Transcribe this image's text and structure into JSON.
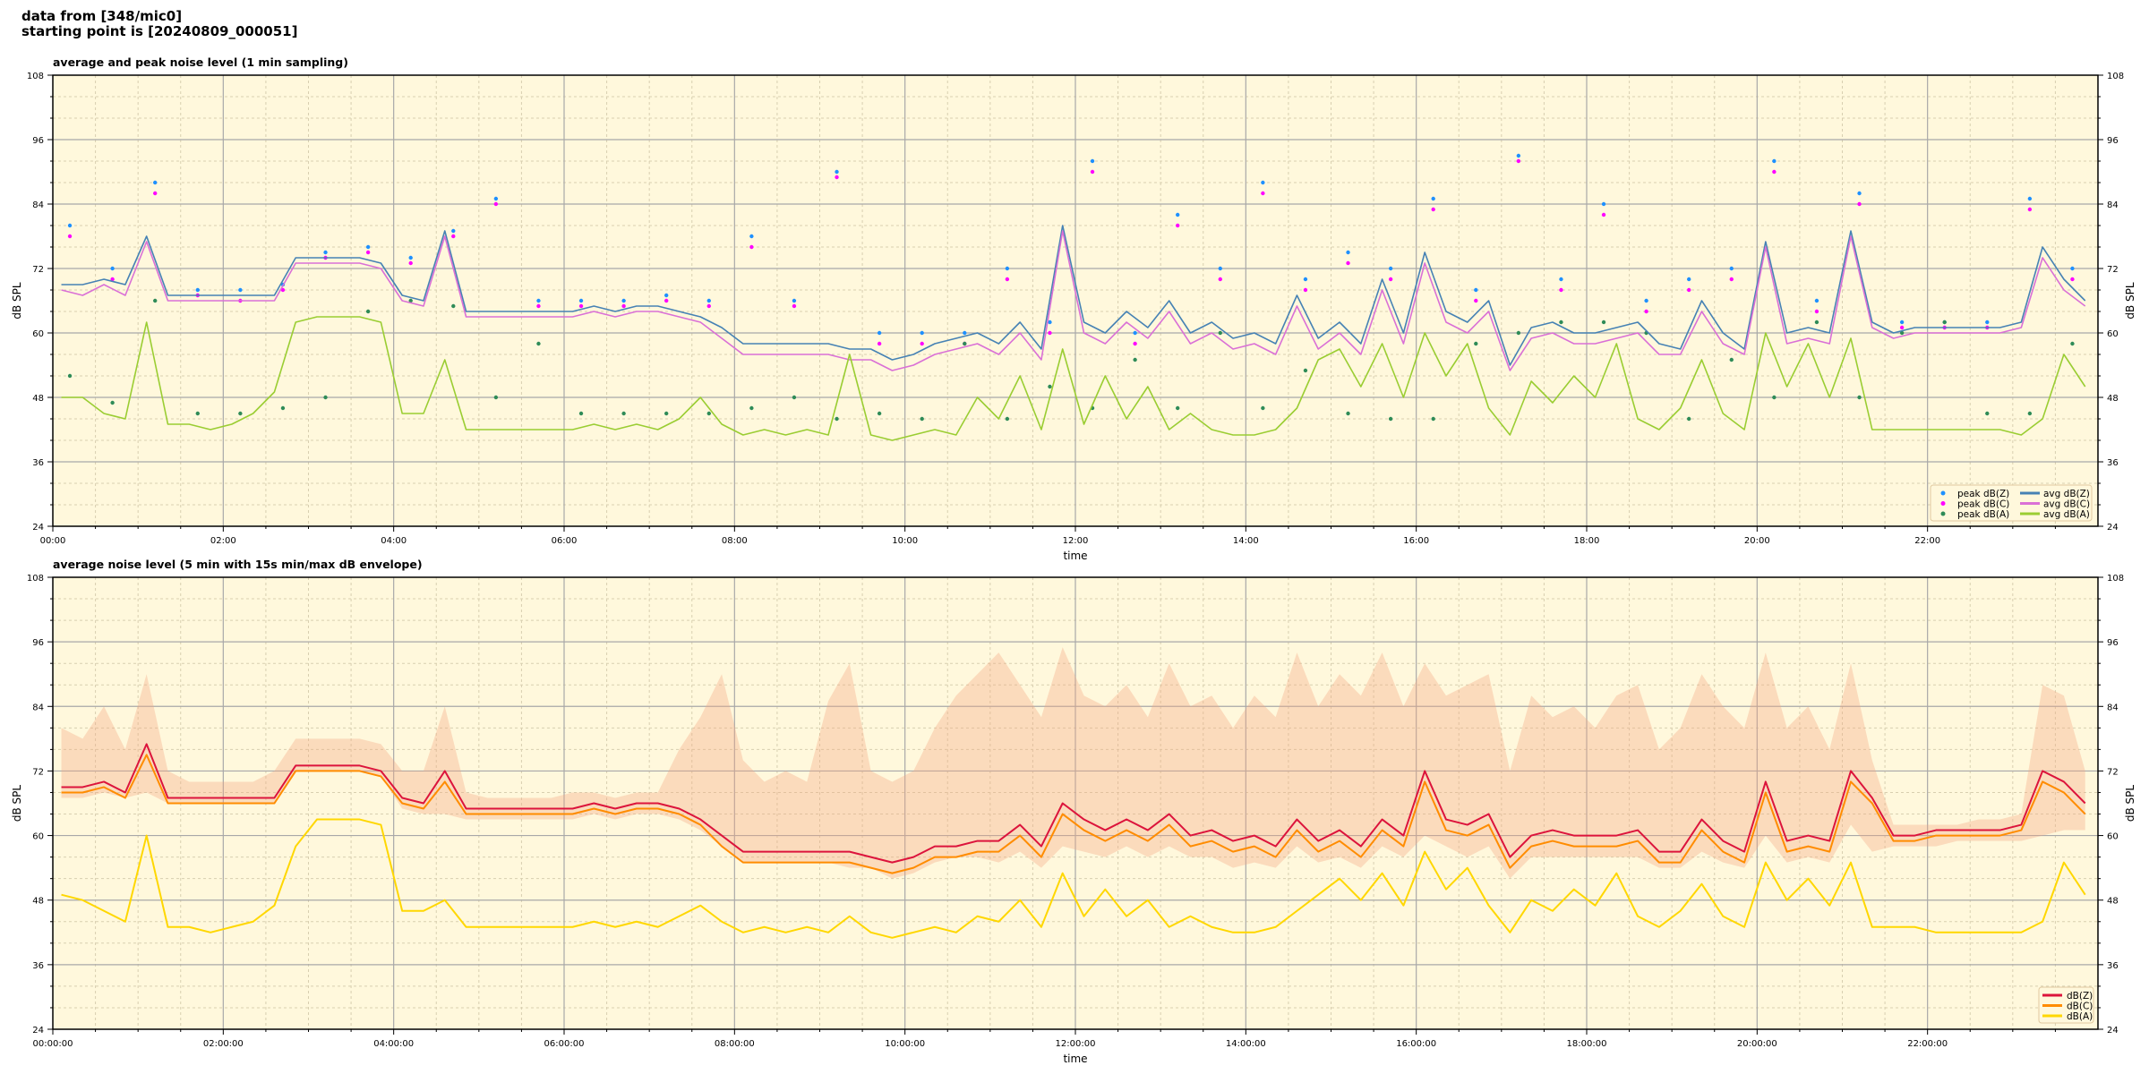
{
  "header": {
    "line1": "data from [348/mic0]",
    "line2": "starting point is [20240809_000051]"
  },
  "chart_data": [
    {
      "type": "line",
      "title": "average and peak noise level (1 min sampling)",
      "xlabel": "time",
      "ylabel": "dB SPL",
      "xlim_hours": [
        0,
        24
      ],
      "ylim": [
        24,
        108
      ],
      "yticks": [
        24,
        36,
        48,
        60,
        72,
        84,
        96,
        108
      ],
      "xtick_labels": [
        "00:00",
        "02:00",
        "04:00",
        "06:00",
        "08:00",
        "10:00",
        "12:00",
        "14:00",
        "16:00",
        "18:00",
        "20:00",
        "22:00"
      ],
      "grid": true,
      "legend_position": "bottom-right",
      "background": "#fff8dc",
      "x_step_hours_lines": 0.25,
      "x_step_hours_points": 0.5,
      "series": [
        {
          "name": "peak dB(Z)",
          "kind": "scatter",
          "color": "#1e90ff",
          "values": [
            80,
            72,
            88,
            68,
            68,
            69,
            75,
            76,
            74,
            79,
            85,
            66,
            66,
            66,
            67,
            66,
            78,
            66,
            90,
            60,
            60,
            60,
            72,
            62,
            92,
            60,
            82,
            72,
            88,
            70,
            75,
            72,
            85,
            68,
            93,
            70,
            84,
            66,
            70,
            72,
            92,
            66,
            86,
            62,
            62,
            62,
            85,
            72
          ]
        },
        {
          "name": "peak dB(C)",
          "kind": "scatter",
          "color": "#ff00ff",
          "values": [
            78,
            70,
            86,
            67,
            66,
            68,
            74,
            75,
            73,
            78,
            84,
            65,
            65,
            65,
            66,
            65,
            76,
            65,
            89,
            58,
            58,
            58,
            70,
            60,
            90,
            58,
            80,
            70,
            86,
            68,
            73,
            70,
            83,
            66,
            92,
            68,
            82,
            64,
            68,
            70,
            90,
            64,
            84,
            61,
            61,
            61,
            83,
            70
          ]
        },
        {
          "name": "peak dB(A)",
          "kind": "scatter",
          "color": "#2e8b57",
          "values": [
            52,
            47,
            66,
            45,
            45,
            46,
            48,
            64,
            66,
            65,
            48,
            58,
            45,
            45,
            45,
            45,
            46,
            48,
            44,
            45,
            44,
            58,
            44,
            50,
            46,
            55,
            46,
            60,
            46,
            53,
            45,
            44,
            44,
            58,
            60,
            62,
            62,
            60,
            44,
            55,
            48,
            62,
            48,
            60,
            62,
            45,
            45,
            58
          ]
        },
        {
          "name": "avg dB(Z)",
          "kind": "line",
          "color": "#4682b4",
          "values": [
            69,
            69,
            70,
            69,
            78,
            67,
            67,
            67,
            67,
            67,
            67,
            74,
            74,
            74,
            74,
            73,
            67,
            66,
            79,
            64,
            64,
            64,
            64,
            64,
            64,
            65,
            64,
            65,
            65,
            64,
            63,
            61,
            58,
            58,
            58,
            58,
            58,
            57,
            57,
            55,
            56,
            58,
            59,
            60,
            58,
            62,
            57,
            80,
            62,
            60,
            64,
            61,
            66,
            60,
            62,
            59,
            60,
            58,
            67,
            59,
            62,
            58,
            70,
            60,
            75,
            64,
            62,
            66,
            54,
            61,
            62,
            60,
            60,
            61,
            62,
            58,
            57,
            66,
            60,
            57,
            77,
            60,
            61,
            60,
            79,
            62,
            60,
            61,
            61,
            61,
            61,
            61,
            62,
            76,
            70,
            66
          ]
        },
        {
          "name": "avg dB(C)",
          "kind": "line",
          "color": "#da70d6",
          "values": [
            68,
            67,
            69,
            67,
            77,
            66,
            66,
            66,
            66,
            66,
            66,
            73,
            73,
            73,
            73,
            72,
            66,
            65,
            78,
            63,
            63,
            63,
            63,
            63,
            63,
            64,
            63,
            64,
            64,
            63,
            62,
            59,
            56,
            56,
            56,
            56,
            56,
            55,
            55,
            53,
            54,
            56,
            57,
            58,
            56,
            60,
            55,
            79,
            60,
            58,
            62,
            59,
            64,
            58,
            60,
            57,
            58,
            56,
            65,
            57,
            60,
            56,
            68,
            58,
            73,
            62,
            60,
            64,
            53,
            59,
            60,
            58,
            58,
            59,
            60,
            56,
            56,
            64,
            58,
            56,
            76,
            58,
            59,
            58,
            78,
            61,
            59,
            60,
            60,
            60,
            60,
            60,
            61,
            74,
            68,
            65
          ]
        },
        {
          "name": "avg dB(A)",
          "kind": "line",
          "color": "#9acd32",
          "values": [
            48,
            48,
            45,
            44,
            62,
            43,
            43,
            42,
            43,
            45,
            49,
            62,
            63,
            63,
            63,
            62,
            45,
            45,
            55,
            42,
            42,
            42,
            42,
            42,
            42,
            43,
            42,
            43,
            42,
            44,
            48,
            43,
            41,
            42,
            41,
            42,
            41,
            56,
            41,
            40,
            41,
            42,
            41,
            48,
            44,
            52,
            42,
            57,
            43,
            52,
            44,
            50,
            42,
            45,
            42,
            41,
            41,
            42,
            46,
            55,
            57,
            50,
            58,
            48,
            60,
            52,
            58,
            46,
            41,
            51,
            47,
            52,
            48,
            58,
            44,
            42,
            46,
            55,
            45,
            42,
            60,
            50,
            58,
            48,
            59,
            42,
            42,
            42,
            42,
            42,
            42,
            42,
            41,
            44,
            56,
            50
          ]
        }
      ]
    },
    {
      "type": "line",
      "title": "average noise level (5 min with 15s min/max dB envelope)",
      "xlabel": "time",
      "ylabel": "dB SPL",
      "xlim_hours": [
        0,
        24
      ],
      "ylim": [
        24,
        108
      ],
      "yticks": [
        24,
        36,
        48,
        60,
        72,
        84,
        96,
        108
      ],
      "xtick_labels": [
        "00:00:00",
        "02:00:00",
        "04:00:00",
        "06:00:00",
        "08:00:00",
        "10:00:00",
        "12:00:00",
        "14:00:00",
        "16:00:00",
        "18:00:00",
        "20:00:00",
        "22:00:00"
      ],
      "grid": true,
      "legend_position": "bottom-right",
      "background": "#fff8dc",
      "x_step_hours": 0.25,
      "envelope": {
        "color": "#f4a582",
        "max_values": [
          80,
          78,
          84,
          76,
          90,
          72,
          70,
          70,
          70,
          70,
          72,
          78,
          78,
          78,
          78,
          77,
          72,
          72,
          84,
          68,
          67,
          67,
          67,
          67,
          68,
          68,
          67,
          68,
          68,
          76,
          82,
          90,
          74,
          70,
          72,
          70,
          85,
          92,
          72,
          70,
          72,
          80,
          86,
          90,
          94,
          88,
          82,
          95,
          86,
          84,
          88,
          82,
          92,
          84,
          86,
          80,
          86,
          82,
          94,
          84,
          90,
          86,
          94,
          84,
          92,
          86,
          88,
          90,
          72,
          86,
          82,
          84,
          80,
          86,
          88,
          76,
          80,
          90,
          84,
          80,
          94,
          80,
          84,
          76,
          92,
          74,
          62,
          62,
          62,
          62,
          63,
          63,
          64,
          88,
          86,
          72
        ],
        "min_values": [
          67,
          67,
          68,
          67,
          68,
          66,
          66,
          66,
          66,
          66,
          66,
          72,
          72,
          72,
          72,
          71,
          65,
          64,
          64,
          63,
          63,
          63,
          63,
          63,
          63,
          64,
          63,
          64,
          64,
          63,
          61,
          58,
          55,
          55,
          55,
          55,
          55,
          54,
          54,
          52,
          53,
          55,
          56,
          56,
          55,
          57,
          54,
          58,
          57,
          56,
          58,
          56,
          58,
          56,
          56,
          54,
          55,
          54,
          58,
          55,
          56,
          54,
          58,
          56,
          60,
          58,
          56,
          58,
          52,
          56,
          56,
          56,
          56,
          56,
          56,
          54,
          54,
          57,
          55,
          54,
          60,
          55,
          56,
          55,
          62,
          57,
          58,
          58,
          58,
          59,
          59,
          59,
          59,
          60,
          61,
          61
        ]
      },
      "series": [
        {
          "name": "dB(Z)",
          "color": "#dc143c",
          "values": [
            69,
            69,
            70,
            68,
            77,
            67,
            67,
            67,
            67,
            67,
            67,
            73,
            73,
            73,
            73,
            72,
            67,
            66,
            72,
            65,
            65,
            65,
            65,
            65,
            65,
            66,
            65,
            66,
            66,
            65,
            63,
            60,
            57,
            57,
            57,
            57,
            57,
            57,
            56,
            55,
            56,
            58,
            58,
            59,
            59,
            62,
            58,
            66,
            63,
            61,
            63,
            61,
            64,
            60,
            61,
            59,
            60,
            58,
            63,
            59,
            61,
            58,
            63,
            60,
            72,
            63,
            62,
            64,
            56,
            60,
            61,
            60,
            60,
            60,
            61,
            57,
            57,
            63,
            59,
            57,
            70,
            59,
            60,
            59,
            72,
            67,
            60,
            60,
            61,
            61,
            61,
            61,
            62,
            72,
            70,
            66
          ]
        },
        {
          "name": "dB(C)",
          "color": "#ff8c00",
          "values": [
            68,
            68,
            69,
            67,
            75,
            66,
            66,
            66,
            66,
            66,
            66,
            72,
            72,
            72,
            72,
            71,
            66,
            65,
            70,
            64,
            64,
            64,
            64,
            64,
            64,
            65,
            64,
            65,
            65,
            64,
            62,
            58,
            55,
            55,
            55,
            55,
            55,
            55,
            54,
            53,
            54,
            56,
            56,
            57,
            57,
            60,
            56,
            64,
            61,
            59,
            61,
            59,
            62,
            58,
            59,
            57,
            58,
            56,
            61,
            57,
            59,
            56,
            61,
            58,
            70,
            61,
            60,
            62,
            54,
            58,
            59,
            58,
            58,
            58,
            59,
            55,
            55,
            61,
            57,
            55,
            68,
            57,
            58,
            57,
            70,
            66,
            59,
            59,
            60,
            60,
            60,
            60,
            61,
            70,
            68,
            64
          ]
        },
        {
          "name": "dB(A)",
          "color": "#ffd700",
          "values": [
            49,
            48,
            46,
            44,
            60,
            43,
            43,
            42,
            43,
            44,
            47,
            58,
            63,
            63,
            63,
            62,
            46,
            46,
            48,
            43,
            43,
            43,
            43,
            43,
            43,
            44,
            43,
            44,
            43,
            45,
            47,
            44,
            42,
            43,
            42,
            43,
            42,
            45,
            42,
            41,
            42,
            43,
            42,
            45,
            44,
            48,
            43,
            53,
            45,
            50,
            45,
            48,
            43,
            45,
            43,
            42,
            42,
            43,
            46,
            49,
            52,
            48,
            53,
            47,
            57,
            50,
            54,
            47,
            42,
            48,
            46,
            50,
            47,
            53,
            45,
            43,
            46,
            51,
            45,
            43,
            55,
            48,
            52,
            47,
            55,
            43,
            43,
            43,
            42,
            42,
            42,
            42,
            42,
            44,
            55,
            49
          ]
        }
      ]
    }
  ]
}
